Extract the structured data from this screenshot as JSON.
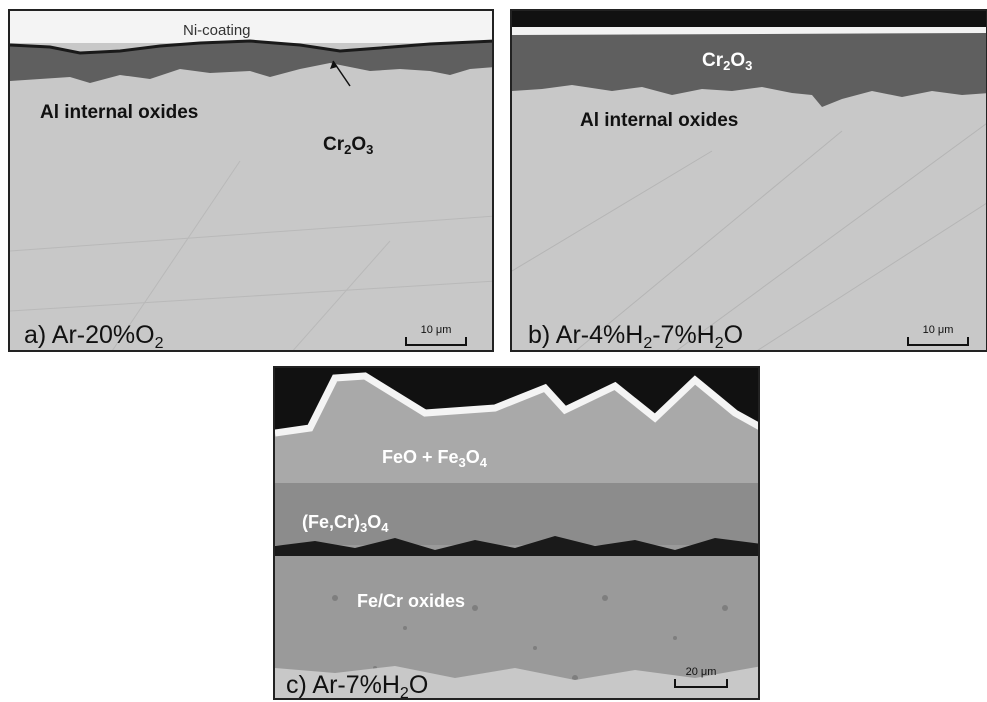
{
  "panels": {
    "a": {
      "caption_main": "a) Ar-20%O",
      "caption_sub": "2",
      "coating": "Ni-coating",
      "internal": "Al internal oxides",
      "oxide_main": "Cr",
      "oxide_sub1": "2",
      "oxide_mid": "O",
      "oxide_sub2": "3",
      "scale": "10 μm"
    },
    "b": {
      "caption_p1": "b) Ar-4%H",
      "caption_s1": "2",
      "caption_p2": "-7%H",
      "caption_s2": "2",
      "caption_p3": "O",
      "oxide_main": "Cr",
      "oxide_sub1": "2",
      "oxide_mid": "O",
      "oxide_sub2": "3",
      "internal": "Al internal oxides",
      "scale": "10 μm"
    },
    "c": {
      "caption_p1": "c) Ar-7%H",
      "caption_s1": "2",
      "caption_p2": "O",
      "layer1_p1": "FeO + Fe",
      "layer1_s1": "3",
      "layer1_p2": "O",
      "layer1_s2": "4",
      "layer2_p1": "(Fe,Cr)",
      "layer2_s1": "3",
      "layer2_p2": "O",
      "layer2_s2": "4",
      "layer3": "Fe/Cr oxides",
      "scale": "20 μm"
    }
  },
  "colors": {
    "metal": "#c8c8c8",
    "cr2o3": "#5f5f5f",
    "coating": "#f2f2f2",
    "mount": "#111111",
    "feo_layer": "#a9a9a9",
    "spinel_layer": "#8c8c8c",
    "mixed_layer": "#9a9a9a"
  }
}
